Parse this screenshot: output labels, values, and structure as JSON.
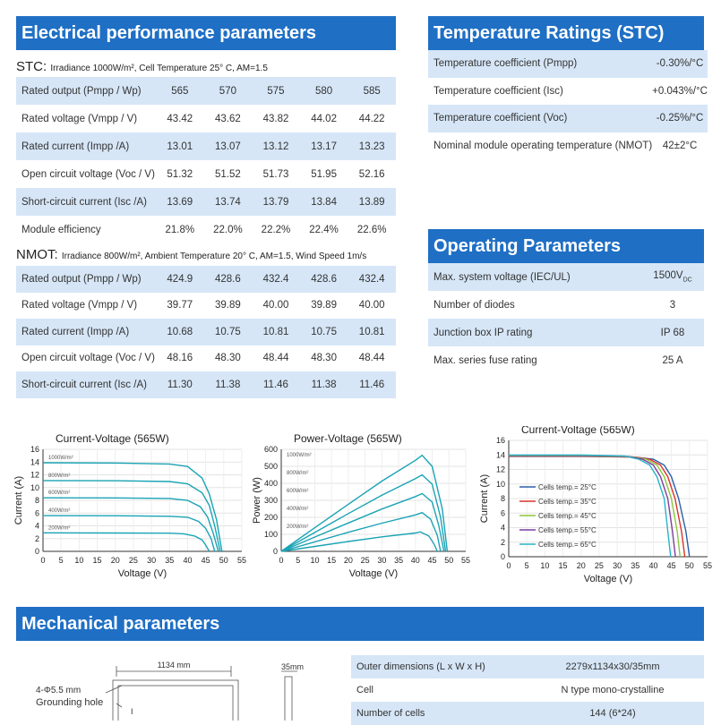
{
  "electrical": {
    "title": "Electrical performance parameters",
    "stc": {
      "label": "STC:",
      "note": "Irradiance 1000W/m², Cell Temperature 25° C, AM=1.5",
      "rows": [
        [
          "Rated output (Pmpp / Wp)",
          "565",
          "570",
          "575",
          "580",
          "585"
        ],
        [
          "Rated voltage (Vmpp / V)",
          "43.42",
          "43.62",
          "43.82",
          "44.02",
          "44.22"
        ],
        [
          "Rated current (Impp /A)",
          "13.01",
          "13.07",
          "13.12",
          "13.17",
          "13.23"
        ],
        [
          "Open circuit voltage (Voc / V)",
          "51.32",
          "51.52",
          "51.73",
          "51.95",
          "52.16"
        ],
        [
          "Short-circuit current (Isc /A)",
          "13.69",
          "13.74",
          "13.79",
          "13.84",
          "13.89"
        ],
        [
          "Module efficiency",
          "21.8%",
          "22.0%",
          "22.2%",
          "22.4%",
          "22.6%"
        ]
      ]
    },
    "nmot": {
      "label": "NMOT:",
      "note": "Irradiance 800W/m², Ambient Temperature 20° C, AM=1.5, Wind Speed 1m/s",
      "rows": [
        [
          "Rated output (Pmpp / Wp)",
          "424.9",
          "428.6",
          "432.4",
          "428.6",
          "432.4"
        ],
        [
          "Rated voltage (Vmpp / V)",
          "39.77",
          "39.89",
          "40.00",
          "39.89",
          "40.00"
        ],
        [
          "Rated current (Impp /A)",
          "10.68",
          "10.75",
          "10.81",
          "10.75",
          "10.81"
        ],
        [
          "Open circuit voltage (Voc / V)",
          "48.16",
          "48.30",
          "48.44",
          "48.30",
          "48.44"
        ],
        [
          "Short-circuit current (Isc /A)",
          "11.30",
          "11.38",
          "11.46",
          "11.38",
          "11.46"
        ]
      ]
    }
  },
  "temperature": {
    "title": "Temperature Ratings (STC)",
    "rows": [
      [
        "Temperature coefficient (Pmpp)",
        "-0.30%/°C"
      ],
      [
        "Temperature coefficient (Isc)",
        "+0.043%/°C"
      ],
      [
        "Temperature coefficient (Voc)",
        "-0.25%/°C"
      ],
      [
        "Nominal module operating temperature (NMOT)",
        "42±2°C"
      ]
    ]
  },
  "operating": {
    "title": "Operating Parameters",
    "rows": [
      [
        "Max. system voltage (IEC/UL)",
        "1500V",
        "DC"
      ],
      [
        "Number of diodes",
        "3"
      ],
      [
        "Junction box IP rating",
        "IP 68"
      ],
      [
        "Max. series fuse rating",
        "25 A"
      ]
    ]
  },
  "chart_data": [
    {
      "type": "line",
      "title": "Current-Voltage  (565W)",
      "x_label": "Voltage (V)",
      "y_label": "Current (A)",
      "xlim": [
        0,
        55
      ],
      "xticks": [
        0,
        5,
        10,
        15,
        20,
        25,
        30,
        35,
        40,
        45,
        50,
        55
      ],
      "ylim": [
        0,
        16
      ],
      "yticks": [
        0,
        2,
        4,
        6,
        8,
        10,
        12,
        14,
        16
      ],
      "grid": true,
      "legend": "inline",
      "series": [
        {
          "name": "1000W/m²",
          "color": "#1aa3b5",
          "x": [
            0,
            20,
            35,
            40,
            44,
            46,
            48,
            49.5
          ],
          "values": [
            13.9,
            13.85,
            13.7,
            13.3,
            11.5,
            9,
            5,
            0
          ]
        },
        {
          "name": "800W/m²",
          "color": "#1aa3b5",
          "x": [
            0,
            20,
            35,
            40,
            44,
            46,
            47.5,
            49
          ],
          "values": [
            11.1,
            11.08,
            10.95,
            10.6,
            9.2,
            7.2,
            4,
            0
          ]
        },
        {
          "name": "600W/m²",
          "color": "#1aa3b5",
          "x": [
            0,
            20,
            35,
            40,
            43.5,
            45.5,
            47,
            48.5
          ],
          "values": [
            8.4,
            8.38,
            8.3,
            8.0,
            7.0,
            5.4,
            3,
            0
          ]
        },
        {
          "name": "400W/m²",
          "color": "#1aa3b5",
          "x": [
            0,
            20,
            35,
            40,
            43,
            45,
            46.5,
            47.5
          ],
          "values": [
            5.6,
            5.58,
            5.5,
            5.35,
            4.7,
            3.6,
            2,
            0
          ]
        },
        {
          "name": "200W/m²",
          "color": "#1aa3b5",
          "x": [
            0,
            20,
            35,
            39,
            42,
            44,
            45,
            46
          ],
          "values": [
            2.9,
            2.88,
            2.85,
            2.75,
            2.4,
            1.8,
            1,
            0
          ]
        }
      ]
    },
    {
      "type": "line",
      "title": "Power-Voltage  (565W)",
      "x_label": "Voltage (V)",
      "y_label": "Power (W)",
      "xlim": [
        0,
        55
      ],
      "xticks": [
        0,
        5,
        10,
        15,
        20,
        25,
        30,
        35,
        40,
        45,
        50,
        55
      ],
      "ylim": [
        0,
        600
      ],
      "yticks": [
        0,
        100,
        200,
        300,
        400,
        500,
        600
      ],
      "grid": true,
      "legend": "inline",
      "series": [
        {
          "name": "1000W/m²",
          "color": "#1aa3b5",
          "x": [
            0,
            10,
            20,
            30,
            40,
            42,
            45,
            48,
            49.5
          ],
          "values": [
            0,
            139,
            277,
            413,
            535,
            565,
            500,
            250,
            0
          ]
        },
        {
          "name": "800W/m²",
          "color": "#1aa3b5",
          "x": [
            0,
            10,
            20,
            30,
            40,
            42,
            45,
            47.5,
            49
          ],
          "values": [
            0,
            111,
            222,
            330,
            428,
            450,
            395,
            200,
            0
          ]
        },
        {
          "name": "600W/m²",
          "color": "#1aa3b5",
          "x": [
            0,
            10,
            20,
            30,
            40,
            42,
            45,
            47,
            48.5
          ],
          "values": [
            0,
            84,
            167,
            249,
            322,
            340,
            290,
            150,
            0
          ]
        },
        {
          "name": "400W/m²",
          "color": "#1aa3b5",
          "x": [
            0,
            10,
            20,
            30,
            40,
            42,
            44.5,
            46.5,
            47.5
          ],
          "values": [
            0,
            56,
            112,
            166,
            214,
            228,
            190,
            95,
            0
          ]
        },
        {
          "name": "200W/m²",
          "color": "#1aa3b5",
          "x": [
            0,
            10,
            20,
            30,
            40,
            41.5,
            44,
            45.5,
            46.5
          ],
          "values": [
            0,
            29,
            58,
            85,
            108,
            115,
            90,
            45,
            0
          ]
        }
      ]
    },
    {
      "type": "line",
      "title": "Current-Voltage  (565W)",
      "x_label": "Voltage (V)",
      "y_label": "Current (A)",
      "xlim": [
        0,
        55
      ],
      "xticks": [
        0,
        5,
        10,
        15,
        20,
        25,
        30,
        35,
        40,
        45,
        50,
        55
      ],
      "ylim": [
        0,
        16
      ],
      "yticks": [
        0,
        2,
        4,
        6,
        8,
        10,
        12,
        14,
        16
      ],
      "grid": true,
      "legend": "left",
      "series": [
        {
          "name": "Cells temp.= 25°C",
          "color": "#2b5fa8",
          "x": [
            0,
            20,
            35,
            40,
            43,
            45,
            47,
            49,
            50
          ],
          "values": [
            13.8,
            13.8,
            13.7,
            13.4,
            12.6,
            11,
            8,
            3.5,
            0
          ]
        },
        {
          "name": "Cells temp.= 35°C",
          "color": "#d9342b",
          "x": [
            0,
            20,
            35,
            39,
            42,
            44,
            46,
            47.8,
            48.7
          ],
          "values": [
            13.85,
            13.85,
            13.7,
            13.4,
            12.6,
            11,
            8,
            3.5,
            0
          ]
        },
        {
          "name": "Cells temp.= 45°C",
          "color": "#8dc63f",
          "x": [
            0,
            20,
            34,
            38,
            41,
            43,
            45,
            46.6,
            47.4
          ],
          "values": [
            13.9,
            13.9,
            13.75,
            13.4,
            12.6,
            11,
            8,
            3.5,
            0
          ]
        },
        {
          "name": "Cells temp.= 55°C",
          "color": "#7b3fa0",
          "x": [
            0,
            20,
            33,
            37,
            40,
            42,
            44,
            45.3,
            46.1
          ],
          "values": [
            13.95,
            13.95,
            13.8,
            13.4,
            12.6,
            11,
            8,
            3.5,
            0
          ]
        },
        {
          "name": "Cells temp.= 65°C",
          "color": "#29b3c6",
          "x": [
            0,
            20,
            32,
            36,
            39,
            41,
            43,
            44,
            44.8
          ],
          "values": [
            14,
            14,
            13.85,
            13.4,
            12.6,
            11,
            8,
            3.5,
            0
          ]
        }
      ]
    }
  ],
  "mechanical": {
    "title": "Mechanical parameters",
    "drawing": {
      "width": "1134 mm",
      "hole": "4-Φ5.5 mm",
      "grounding": "Grounding hole",
      "depth": "35mm",
      "section": "I"
    },
    "rows": [
      [
        "Outer dimensions (L x W x H)",
        "2279x1134x30/35mm"
      ],
      [
        "Cell",
        "N type mono-crystalline"
      ],
      [
        "Number of cells",
        "144 (6*24)"
      ]
    ]
  }
}
